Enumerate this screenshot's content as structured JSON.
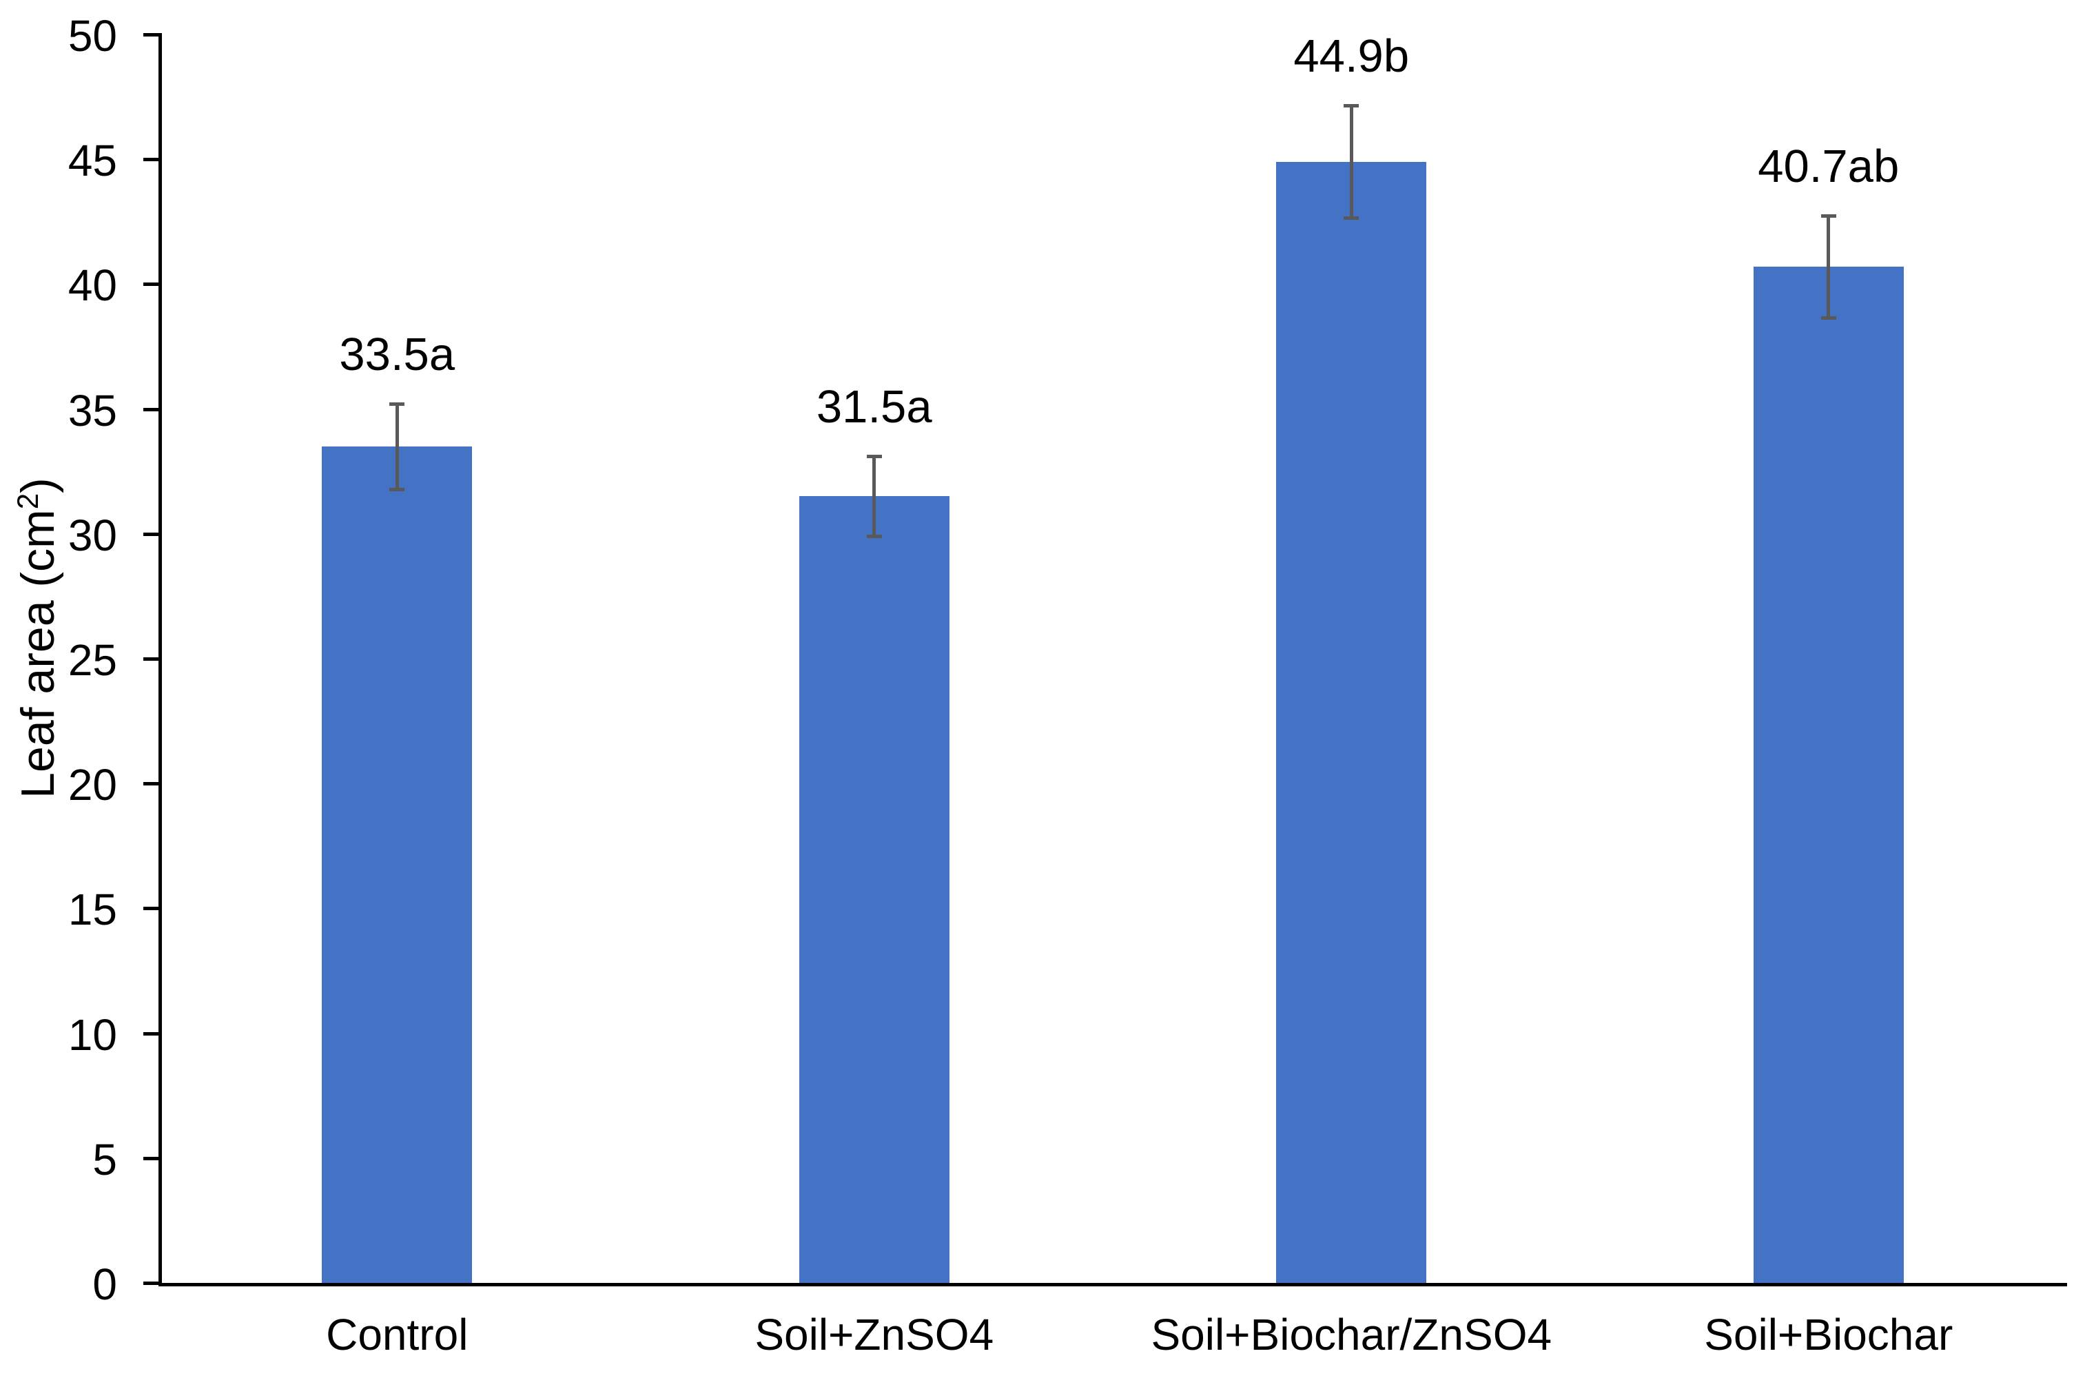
{
  "chart_data": {
    "type": "bar",
    "title": "",
    "categories": [
      "Control",
      "Soil+ZnSO4",
      "Soil+Biochar/ZnSO4",
      "Soil+Biochar"
    ],
    "values": [
      33.5,
      31.5,
      44.9,
      40.7
    ],
    "data_labels": [
      "33.5a",
      "31.5a",
      "44.9b",
      "40.7ab"
    ],
    "errors": [
      1.7,
      1.6,
      2.25,
      2.05
    ],
    "xlabel": "",
    "ylabel": "Leaf area (cm²)",
    "ylabel_parts": {
      "prefix": "Leaf area (cm",
      "sup": "2",
      "suffix": ")"
    },
    "ylim": [
      0,
      50
    ],
    "yticks": [
      0,
      5,
      10,
      15,
      20,
      25,
      30,
      35,
      40,
      45,
      50
    ],
    "grid": false,
    "legend": false,
    "bar_color": "#4472C4",
    "error_bar_color": "#595959",
    "axis_color": "#000000",
    "text_color": "#000000",
    "background_color": "#ffffff"
  }
}
